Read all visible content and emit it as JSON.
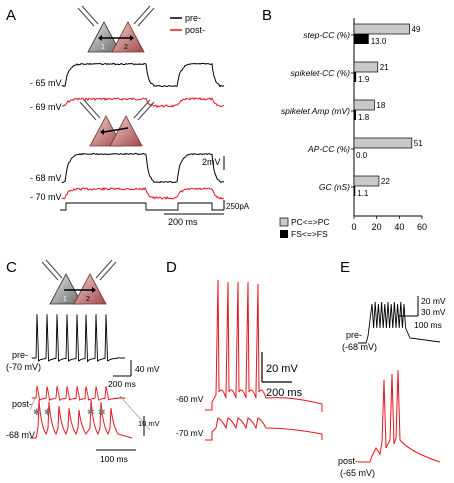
{
  "panels": {
    "A": {
      "letter": "A",
      "legend": [
        "pre-",
        "post-"
      ],
      "top_pair": {
        "pre_voltage": "- 65 mV",
        "post_voltage": "- 69 mV"
      },
      "bottom_pair": {
        "pre_voltage": "- 68 mV",
        "post_voltage": "- 70 mV"
      },
      "scale_v": "2mV",
      "scale_i": "250pA",
      "scale_t": "200 ms",
      "cell_labels": [
        "1",
        "2"
      ]
    },
    "B": {
      "letter": "B"
    },
    "C": {
      "letter": "C",
      "pre_label": "pre-",
      "pre_voltage": "(-70 mV)",
      "post_label": "post-",
      "post_voltage": "-68 mV",
      "scale_v": "40 mV",
      "scale_t": "200 ms",
      "inset_scale_v": "10 mV",
      "inset_scale_t": "100 ms",
      "cell_labels": [
        "1",
        "2"
      ]
    },
    "D": {
      "letter": "D",
      "top_voltage": "-60 mV",
      "bottom_voltage": "-70 mV",
      "scale_v": "20 mV",
      "scale_t": "200 ms"
    },
    "E": {
      "letter": "E",
      "pre_label": "pre-",
      "pre_voltage": "(-68 mV)",
      "post_label": "post-",
      "post_voltage": "(-65 mV)",
      "scale_v1": "20 mV",
      "scale_v2": "30 mV",
      "scale_t": "100 ms"
    }
  },
  "colors": {
    "pre": "#000000",
    "post": "#e8141c",
    "pc_bar": "#c8c8c8",
    "fs_bar": "#000000"
  },
  "chart_data": {
    "type": "bar",
    "orientation": "horizontal",
    "categories": [
      "step-CC (%)",
      "spikelet-CC (%)",
      "spikelet Amp (mV)",
      "AP-CC (%)",
      "GC (nS)"
    ],
    "series": [
      {
        "name": "PC<=>PC",
        "values": [
          49,
          21,
          18,
          51,
          22
        ]
      },
      {
        "name": "FS<=>FS",
        "values": [
          13.0,
          1.9,
          1.8,
          0.0,
          1.1
        ]
      }
    ],
    "value_labels": {
      "PC<=>PC": [
        "49",
        "21",
        "18",
        "51",
        "22"
      ],
      "FS<=>FS": [
        "13.0",
        "1.9",
        "1.8",
        "0.0",
        "1.1"
      ]
    },
    "xlim": [
      0,
      60
    ],
    "xticks": [
      "0",
      "20",
      "40",
      "60"
    ],
    "legend_position": "bottom-left"
  }
}
